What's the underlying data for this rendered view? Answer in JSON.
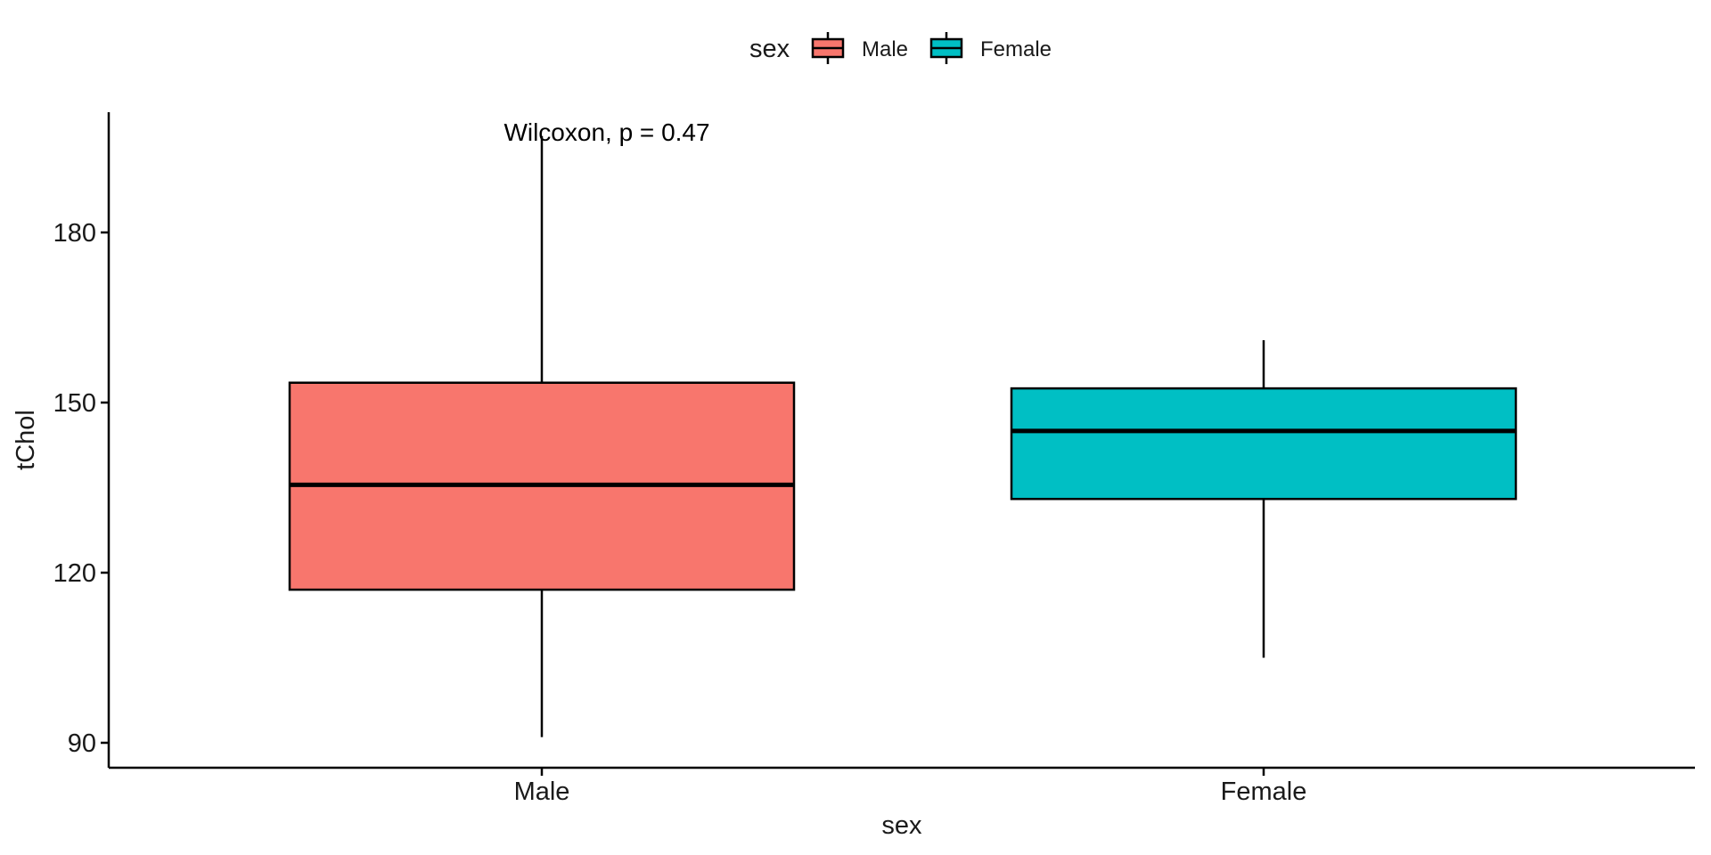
{
  "chart_data": {
    "type": "boxplot",
    "xlabel": "sex",
    "ylabel": "tChol",
    "categories": [
      "Male",
      "Female"
    ],
    "ylim": [
      86,
      201
    ],
    "yticks": [
      90,
      120,
      150,
      180
    ],
    "ytick_labels": [
      "90",
      "120",
      "150",
      "180"
    ],
    "grid": false,
    "legend": {
      "title": "sex",
      "placement": "top",
      "entries": [
        {
          "label": "Male",
          "color": "#F8766D"
        },
        {
          "label": "Female",
          "color": "#00BFC4"
        }
      ]
    },
    "series": [
      {
        "name": "Male",
        "color": "#F8766D",
        "whisker_low": 91,
        "q1": 117,
        "median": 135.5,
        "q3": 153.5,
        "whisker_high": 197
      },
      {
        "name": "Female",
        "color": "#00BFC4",
        "whisker_low": 105,
        "q1": 133,
        "median": 145,
        "q3": 152.5,
        "whisker_high": 161
      }
    ],
    "annotations": [
      {
        "text": "Wilcoxon, p = 0.47"
      }
    ]
  }
}
